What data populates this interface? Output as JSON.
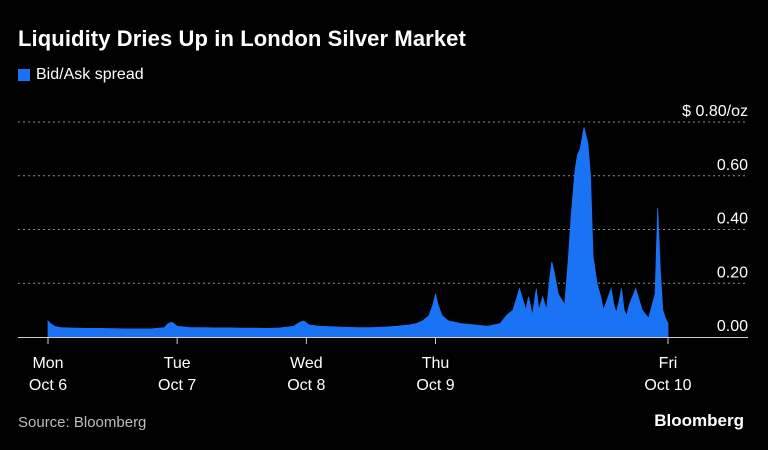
{
  "colors": {
    "background": "#000000",
    "series": "#1a73f5",
    "grid": "#8a8a8a",
    "text": "#ffffff",
    "muted": "#bdbdbd"
  },
  "footer": {
    "source": "Source: Bloomberg",
    "brand": "Bloomberg"
  },
  "chart_data": {
    "type": "area",
    "title": "Liquidity Dries Up in London Silver Market",
    "xlabel": "",
    "ylabel": "",
    "y_unit_label": "$ 0.80/oz",
    "ylim": [
      0,
      0.8
    ],
    "y_ticks": [
      {
        "value": 0.8,
        "label": "$ 0.80/oz"
      },
      {
        "value": 0.6,
        "label": "0.60"
      },
      {
        "value": 0.4,
        "label": "0.40"
      },
      {
        "value": 0.2,
        "label": "0.20"
      },
      {
        "value": 0.0,
        "label": "0.00"
      }
    ],
    "x_ticks": [
      {
        "day": 0,
        "line1": "Mon",
        "line2": "Oct 6"
      },
      {
        "day": 1,
        "line1": "Tue",
        "line2": "Oct 7"
      },
      {
        "day": 2,
        "line1": "Wed",
        "line2": "Oct 8"
      },
      {
        "day": 3,
        "line1": "Thu",
        "line2": "Oct 9"
      },
      {
        "day": 4.8,
        "line1": "Fri",
        "line2": "Oct 10"
      }
    ],
    "grid": true,
    "legend": "top-left",
    "series": [
      {
        "name": "Bid/Ask spread",
        "x": [
          0,
          0.02,
          0.05,
          0.1,
          0.2,
          0.3,
          0.4,
          0.5,
          0.6,
          0.7,
          0.8,
          0.9,
          0.93,
          0.96,
          1.0,
          1.1,
          1.2,
          1.3,
          1.4,
          1.5,
          1.6,
          1.7,
          1.8,
          1.9,
          1.95,
          1.98,
          2.02,
          2.1,
          2.2,
          2.3,
          2.4,
          2.5,
          2.6,
          2.7,
          2.8,
          2.85,
          2.9,
          2.95,
          2.98,
          3.0,
          3.02,
          3.05,
          3.1,
          3.2,
          3.3,
          3.4,
          3.5,
          3.55,
          3.6,
          3.65,
          3.7,
          3.72,
          3.75,
          3.78,
          3.8,
          3.83,
          3.86,
          3.88,
          3.9,
          3.92,
          3.95,
          4.0,
          4.03,
          4.05,
          4.08,
          4.1,
          4.12,
          4.15,
          4.18,
          4.2,
          4.22,
          4.25,
          4.28,
          4.3,
          4.33,
          4.36,
          4.38,
          4.4,
          4.42,
          4.44,
          4.46,
          4.48,
          4.5,
          4.55,
          4.6,
          4.65,
          4.7,
          4.72,
          4.74,
          4.76,
          4.78,
          4.8
        ],
        "values": [
          0.06,
          0.05,
          0.04,
          0.035,
          0.033,
          0.032,
          0.032,
          0.031,
          0.03,
          0.03,
          0.03,
          0.035,
          0.05,
          0.055,
          0.04,
          0.035,
          0.035,
          0.034,
          0.034,
          0.033,
          0.033,
          0.032,
          0.034,
          0.04,
          0.055,
          0.06,
          0.045,
          0.04,
          0.038,
          0.036,
          0.035,
          0.035,
          0.037,
          0.04,
          0.045,
          0.05,
          0.06,
          0.08,
          0.12,
          0.16,
          0.12,
          0.08,
          0.06,
          0.05,
          0.045,
          0.04,
          0.05,
          0.08,
          0.1,
          0.18,
          0.1,
          0.15,
          0.08,
          0.18,
          0.1,
          0.15,
          0.1,
          0.2,
          0.28,
          0.24,
          0.16,
          0.12,
          0.3,
          0.45,
          0.62,
          0.68,
          0.7,
          0.78,
          0.72,
          0.6,
          0.3,
          0.2,
          0.15,
          0.1,
          0.14,
          0.18,
          0.12,
          0.09,
          0.13,
          0.18,
          0.1,
          0.08,
          0.12,
          0.18,
          0.1,
          0.07,
          0.16,
          0.48,
          0.25,
          0.1,
          0.07,
          0.05
        ]
      }
    ]
  }
}
